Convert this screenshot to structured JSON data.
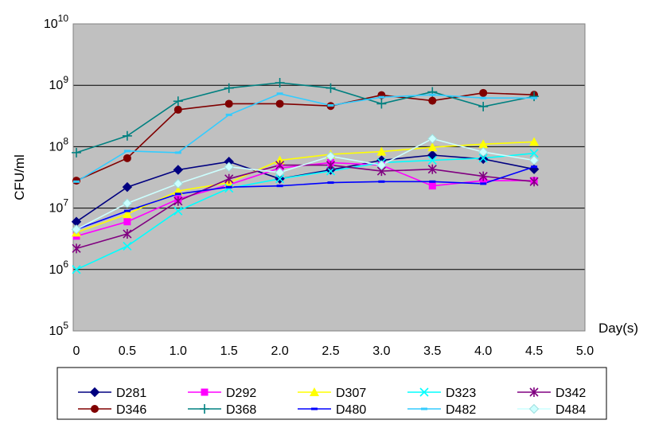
{
  "chart_data": {
    "type": "line",
    "xlabel": "Day(s)",
    "ylabel": "CFU/ml",
    "y_scale": "log",
    "ylim": [
      100000,
      10000000000
    ],
    "xlim": [
      0,
      5.0
    ],
    "x_ticks": [
      "0",
      "0.5",
      "1.0",
      "1.5",
      "2.0",
      "2.5",
      "3.0",
      "3.5",
      "4.0",
      "4.5",
      "5.0"
    ],
    "y_ticks": [
      {
        "base": "10",
        "exp": "5"
      },
      {
        "base": "10",
        "exp": "6"
      },
      {
        "base": "10",
        "exp": "7"
      },
      {
        "base": "10",
        "exp": "8"
      },
      {
        "base": "10",
        "exp": "9"
      },
      {
        "base": "10",
        "exp": "10"
      }
    ],
    "plot_background": "#c0c0c0",
    "grid": "horizontal major lines",
    "legend_position": "bottom",
    "x": [
      0,
      0.5,
      1.0,
      1.5,
      2.0,
      2.5,
      3.0,
      3.5,
      4.0,
      4.5
    ],
    "series": [
      {
        "name": "D281",
        "color": "#000080",
        "marker": "diamond",
        "values": [
          6000000,
          22000000,
          42000000,
          57000000,
          30000000,
          42000000,
          60000000,
          73000000,
          63000000,
          43000000
        ]
      },
      {
        "name": "D292",
        "color": "#ff00ff",
        "marker": "square",
        "values": [
          3500000,
          6000000,
          14000000,
          24000000,
          45000000,
          55000000,
          50000000,
          23000000,
          28000000,
          28000000
        ]
      },
      {
        "name": "D307",
        "color": "#ffff00",
        "marker": "triangle",
        "values": [
          4000000,
          8000000,
          19000000,
          26000000,
          60000000,
          75000000,
          83000000,
          98000000,
          110000000,
          120000000
        ]
      },
      {
        "name": "D323",
        "color": "#00ffff",
        "marker": "x",
        "values": [
          1000000,
          2400000,
          9000000,
          21000000,
          30000000,
          40000000,
          55000000,
          60000000,
          65000000,
          78000000
        ]
      },
      {
        "name": "D342",
        "color": "#800080",
        "marker": "star",
        "values": [
          2200000,
          3800000,
          13000000,
          30000000,
          50000000,
          50000000,
          40000000,
          43000000,
          33000000,
          27000000
        ]
      },
      {
        "name": "D346",
        "color": "#800000",
        "marker": "circle",
        "values": [
          28000000,
          65000000,
          400000000,
          500000000,
          500000000,
          460000000,
          690000000,
          560000000,
          750000000,
          700000000
        ]
      },
      {
        "name": "D368",
        "color": "#008080",
        "marker": "plus",
        "values": [
          80000000,
          150000000,
          550000000,
          900000000,
          1100000000,
          900000000,
          500000000,
          780000000,
          450000000,
          660000000
        ]
      },
      {
        "name": "D480",
        "color": "#0000ff",
        "marker": "dash",
        "values": [
          4500000,
          9000000,
          17000000,
          22000000,
          23000000,
          26000000,
          27000000,
          27000000,
          25000000,
          47000000
        ]
      },
      {
        "name": "D482",
        "color": "#33ccff",
        "marker": "dash",
        "values": [
          27000000,
          85000000,
          80000000,
          330000000,
          730000000,
          470000000,
          640000000,
          700000000,
          620000000,
          620000000
        ]
      },
      {
        "name": "D484",
        "color": "#ccffff",
        "marker": "diamond",
        "values": [
          4500000,
          12000000,
          25000000,
          47000000,
          38000000,
          70000000,
          50000000,
          135000000,
          82000000,
          60000000
        ]
      }
    ]
  }
}
